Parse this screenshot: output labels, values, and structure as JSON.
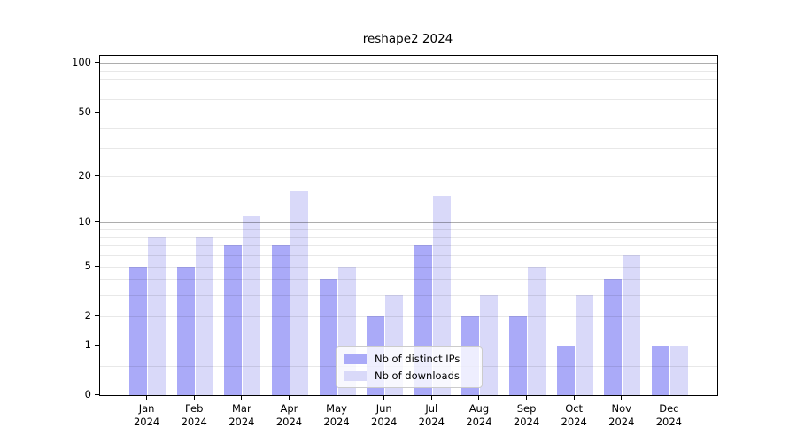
{
  "title": "reshape2 2024",
  "colors": {
    "distinct_ips_bar": "#aaaaf8",
    "downloads_bar": "#d9d9f9",
    "grid_major": "rgba(0,0,0,0.32)",
    "grid_minor": "rgba(0,0,0,0.09)",
    "axis": "#000000",
    "legend_border": "#cccccc"
  },
  "chart_data": {
    "type": "bar",
    "title": "reshape2 2024",
    "categories": [
      "Jan 2024",
      "Feb 2024",
      "Mar 2024",
      "Apr 2024",
      "May 2024",
      "Jun 2024",
      "Jul 2024",
      "Aug 2024",
      "Sep 2024",
      "Oct 2024",
      "Nov 2024",
      "Dec 2024"
    ],
    "series": [
      {
        "key": "distinct-ips",
        "name": "Nb of distinct IPs",
        "color": "#aaaaf8",
        "values": [
          5,
          5,
          7,
          7,
          4,
          2,
          7,
          2,
          2,
          1,
          4,
          1
        ]
      },
      {
        "key": "downloads",
        "name": "Nb of downloads",
        "color": "#d9d9f9",
        "values": [
          8,
          8,
          11,
          16,
          5,
          3,
          15,
          3,
          5,
          3,
          6,
          1
        ]
      }
    ],
    "xlabel": "",
    "ylabel": "",
    "yscale": "log1p",
    "ylim": [
      0,
      111
    ],
    "y_ticks": [
      0,
      1,
      2,
      5,
      10,
      20,
      50,
      100
    ],
    "y_major_gridlines": [
      1,
      10,
      100
    ],
    "y_minor_gridlines": [
      0.5,
      2,
      3,
      4,
      5,
      6,
      7,
      8,
      9,
      20,
      30,
      40,
      50,
      60,
      70,
      80,
      90
    ],
    "grid": true,
    "grid_above_bars": true,
    "legend_position": "lower center"
  }
}
